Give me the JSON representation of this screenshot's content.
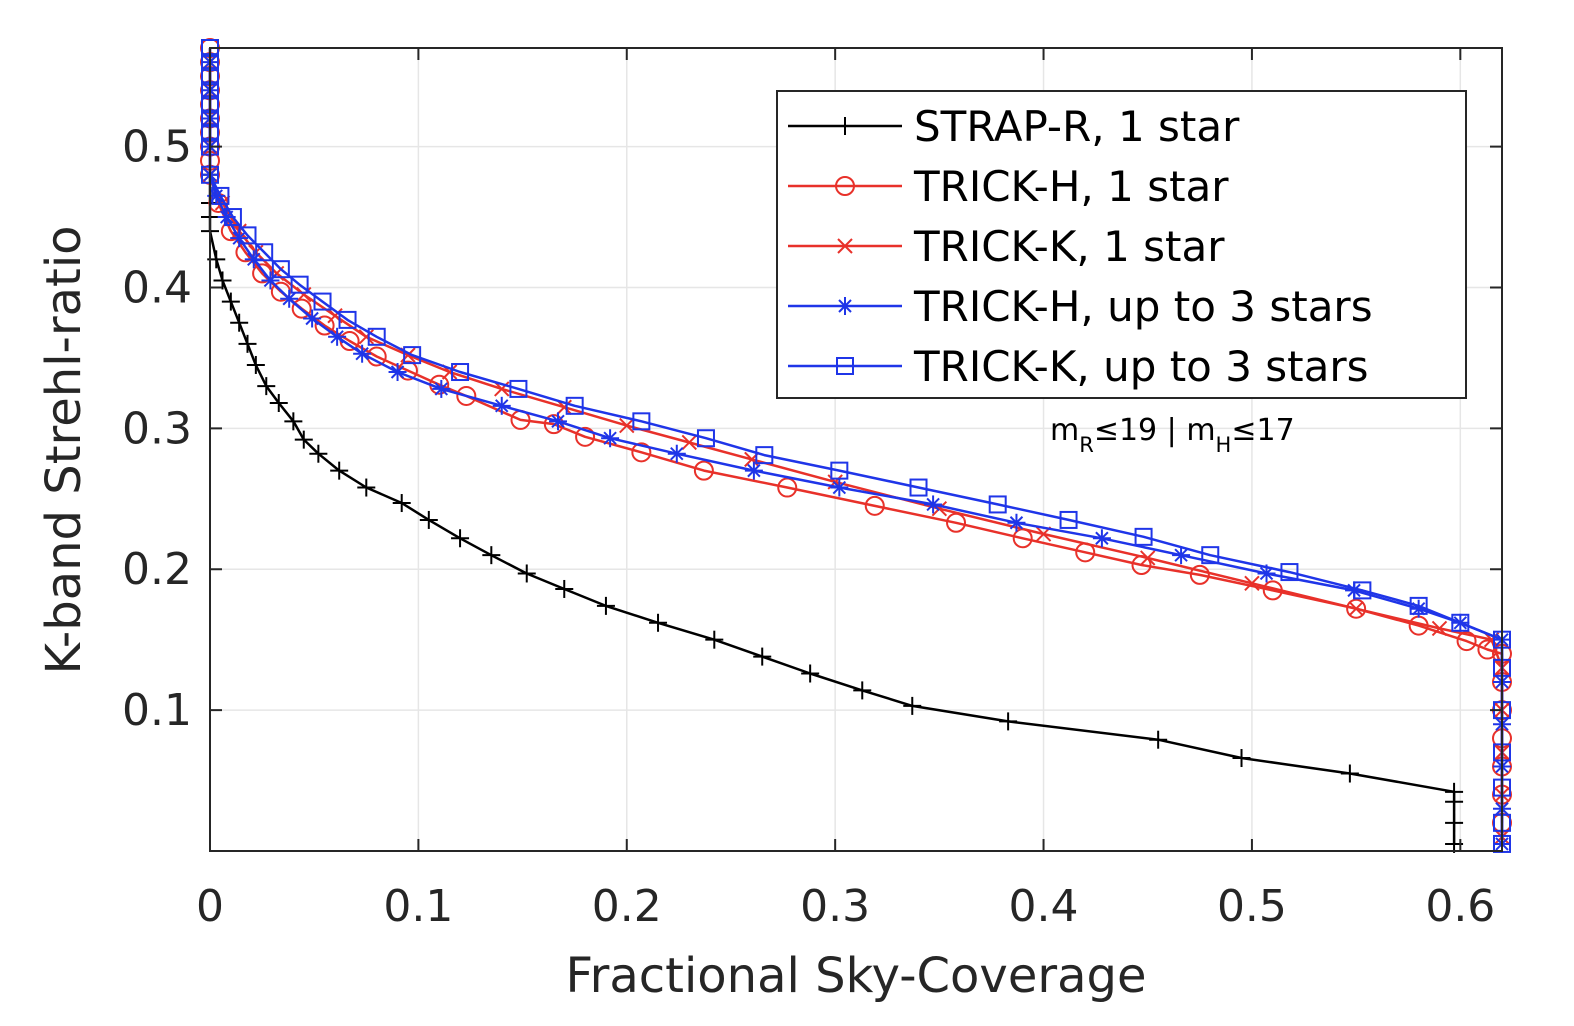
{
  "chart_data": {
    "type": "line",
    "title": "",
    "xlabel": "Fractional Sky-Coverage",
    "ylabel": "K-band Strehl-ratio",
    "xlim": [
      0,
      0.62
    ],
    "ylim": [
      0,
      0.57
    ],
    "xticks": [
      0,
      0.1,
      0.2,
      0.3,
      0.4,
      0.5,
      0.6
    ],
    "xtick_labels": [
      "0",
      "0.1",
      "0.2",
      "0.3",
      "0.4",
      "0.5",
      "0.6"
    ],
    "yticks": [
      0.1,
      0.2,
      0.3,
      0.4,
      0.5
    ],
    "ytick_labels": [
      "0.1",
      "0.2",
      "0.3",
      "0.4",
      "0.5"
    ],
    "grid": true,
    "legend_position": "top-right",
    "annotation": {
      "m1": "m",
      "s1": "R",
      "r1": "≤19 | m",
      "s2": "H",
      "r2": "≤17"
    },
    "series": [
      {
        "name": "STRAP-R, 1 star",
        "color": "#000000",
        "marker": "plus",
        "x": [
          0,
          0,
          0,
          0,
          0.003,
          0.006,
          0.01,
          0.014,
          0.018,
          0.022,
          0.027,
          0.033,
          0.04,
          0.045,
          0.052,
          0.062,
          0.075,
          0.092,
          0.105,
          0.12,
          0.135,
          0.152,
          0.17,
          0.19,
          0.215,
          0.242,
          0.265,
          0.288,
          0.313,
          0.337,
          0.383,
          0.455,
          0.495,
          0.547,
          0.597,
          0.597,
          0.597,
          0.597
        ],
        "y": [
          0.48,
          0.46,
          0.45,
          0.44,
          0.42,
          0.405,
          0.39,
          0.375,
          0.36,
          0.345,
          0.33,
          0.318,
          0.305,
          0.292,
          0.282,
          0.27,
          0.258,
          0.247,
          0.235,
          0.222,
          0.21,
          0.197,
          0.186,
          0.174,
          0.162,
          0.15,
          0.138,
          0.126,
          0.114,
          0.103,
          0.092,
          0.079,
          0.066,
          0.055,
          0.042,
          0.035,
          0.02,
          0.005
        ]
      },
      {
        "name": "TRICK-H, 1 star",
        "color": "#e8312a",
        "marker": "circle",
        "x": [
          0,
          0,
          0,
          0,
          0,
          0,
          0,
          0,
          0,
          0,
          0.004,
          0.01,
          0.017,
          0.025,
          0.034,
          0.044,
          0.055,
          0.067,
          0.08,
          0.095,
          0.11,
          0.123,
          0.149,
          0.165,
          0.18,
          0.207,
          0.237,
          0.277,
          0.319,
          0.358,
          0.39,
          0.42,
          0.447,
          0.475,
          0.51,
          0.55,
          0.58,
          0.603,
          0.613,
          0.62,
          0.62,
          0.62,
          0.62,
          0.62,
          0.62,
          0.62
        ],
        "y": [
          0.57,
          0.56,
          0.55,
          0.54,
          0.53,
          0.52,
          0.51,
          0.5,
          0.49,
          0.48,
          0.46,
          0.44,
          0.425,
          0.41,
          0.397,
          0.385,
          0.373,
          0.362,
          0.351,
          0.341,
          0.331,
          0.323,
          0.306,
          0.303,
          0.294,
          0.283,
          0.27,
          0.258,
          0.245,
          0.233,
          0.222,
          0.212,
          0.203,
          0.196,
          0.185,
          0.172,
          0.16,
          0.149,
          0.143,
          0.14,
          0.12,
          0.1,
          0.08,
          0.06,
          0.04,
          0.02
        ]
      },
      {
        "name": "TRICK-K, 1 star",
        "color": "#e8312a",
        "marker": "cross",
        "x": [
          0,
          0,
          0,
          0,
          0,
          0.006,
          0.014,
          0.022,
          0.032,
          0.045,
          0.06,
          0.075,
          0.095,
          0.115,
          0.14,
          0.17,
          0.2,
          0.23,
          0.26,
          0.3,
          0.35,
          0.4,
          0.45,
          0.5,
          0.55,
          0.59,
          0.615,
          0.62,
          0.62,
          0.62,
          0.62,
          0.62
        ],
        "y": [
          0.56,
          0.54,
          0.52,
          0.5,
          0.48,
          0.46,
          0.44,
          0.425,
          0.41,
          0.395,
          0.38,
          0.365,
          0.352,
          0.34,
          0.328,
          0.315,
          0.302,
          0.29,
          0.278,
          0.262,
          0.243,
          0.225,
          0.208,
          0.19,
          0.172,
          0.158,
          0.15,
          0.13,
          0.1,
          0.07,
          0.04,
          0.01
        ]
      },
      {
        "name": "TRICK-H, up to 3 stars",
        "color": "#1f35e8",
        "marker": "star",
        "x": [
          0,
          0,
          0,
          0,
          0,
          0.003,
          0.008,
          0.014,
          0.021,
          0.029,
          0.038,
          0.049,
          0.061,
          0.073,
          0.09,
          0.111,
          0.14,
          0.167,
          0.192,
          0.224,
          0.261,
          0.302,
          0.347,
          0.387,
          0.428,
          0.466,
          0.507,
          0.549,
          0.58,
          0.6,
          0.62,
          0.62,
          0.62,
          0.62,
          0.62,
          0.62
        ],
        "y": [
          0.56,
          0.54,
          0.52,
          0.5,
          0.48,
          0.465,
          0.45,
          0.435,
          0.42,
          0.405,
          0.392,
          0.378,
          0.365,
          0.353,
          0.34,
          0.328,
          0.316,
          0.305,
          0.293,
          0.282,
          0.27,
          0.258,
          0.246,
          0.233,
          0.222,
          0.21,
          0.197,
          0.185,
          0.172,
          0.162,
          0.15,
          0.12,
          0.09,
          0.06,
          0.03,
          0.005
        ]
      },
      {
        "name": "TRICK-K, up to 3 stars",
        "color": "#1f35e8",
        "marker": "square",
        "x": [
          0,
          0,
          0,
          0,
          0,
          0,
          0,
          0,
          0,
          0.005,
          0.011,
          0.018,
          0.026,
          0.034,
          0.043,
          0.054,
          0.066,
          0.08,
          0.097,
          0.12,
          0.148,
          0.175,
          0.207,
          0.238,
          0.266,
          0.302,
          0.34,
          0.378,
          0.412,
          0.448,
          0.48,
          0.518,
          0.553,
          0.58,
          0.6,
          0.62,
          0.62,
          0.62,
          0.62,
          0.62,
          0.62,
          0.62
        ],
        "y": [
          0.57,
          0.56,
          0.55,
          0.54,
          0.53,
          0.52,
          0.51,
          0.5,
          0.48,
          0.465,
          0.45,
          0.437,
          0.425,
          0.413,
          0.402,
          0.39,
          0.377,
          0.365,
          0.352,
          0.34,
          0.328,
          0.316,
          0.305,
          0.293,
          0.281,
          0.27,
          0.258,
          0.246,
          0.235,
          0.223,
          0.21,
          0.198,
          0.185,
          0.174,
          0.162,
          0.15,
          0.13,
          0.1,
          0.07,
          0.045,
          0.02,
          0.005
        ]
      }
    ]
  }
}
